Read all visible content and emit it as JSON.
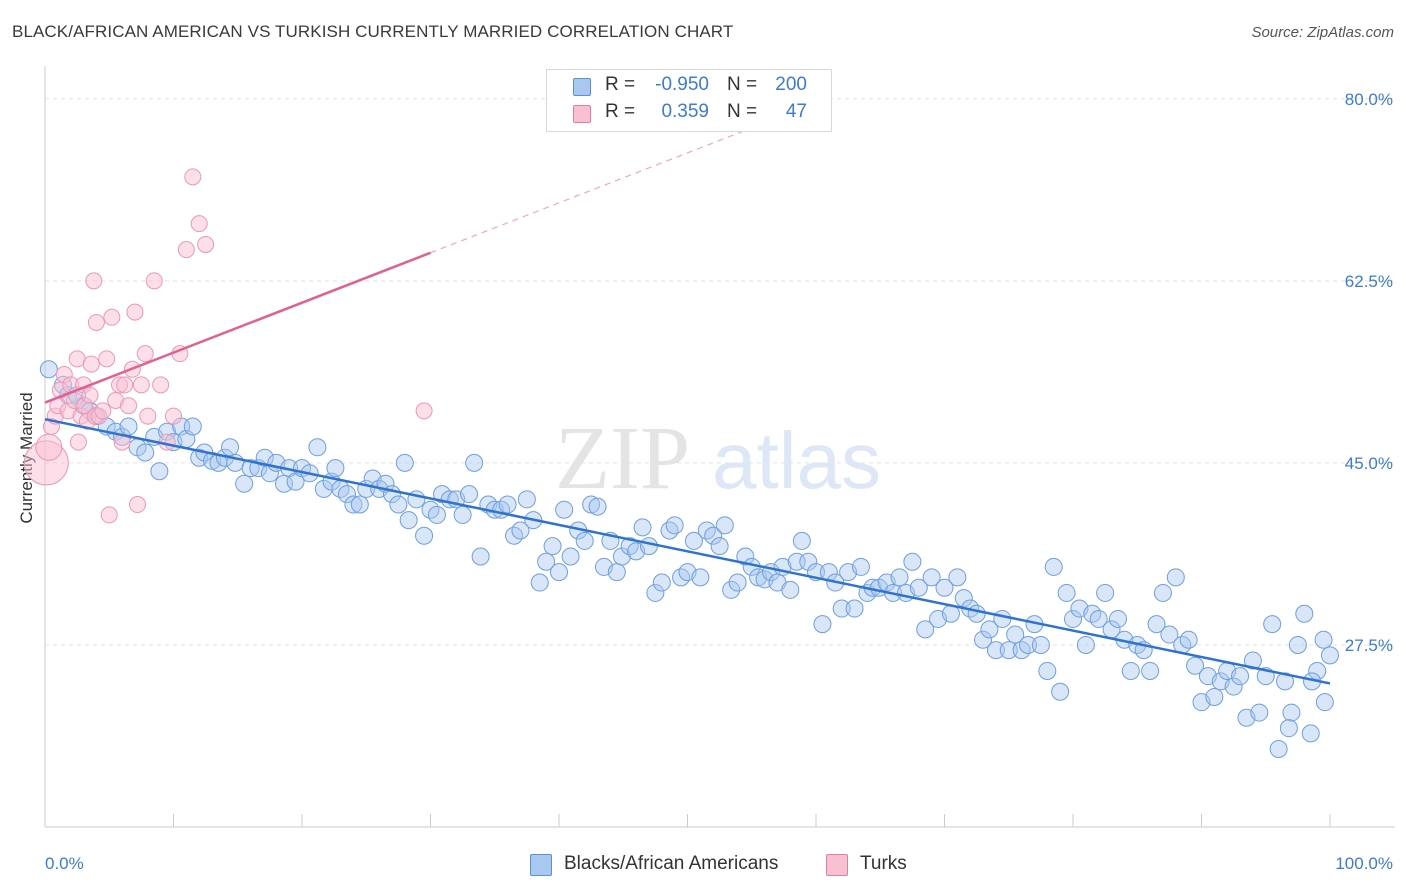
{
  "header": {
    "title": "BLACK/AFRICAN AMERICAN VS TURKISH CURRENTLY MARRIED CORRELATION CHART",
    "source": "Source: ZipAtlas.com"
  },
  "watermark": {
    "part1": "ZIP",
    "part2": "atlas"
  },
  "stats": [
    {
      "r_label": "R =",
      "r_value": "-0.950",
      "n_label": "N =",
      "n_value": "200",
      "color": "#a8c8f0",
      "border": "#5b8fd6"
    },
    {
      "r_label": "R =",
      "r_value": "0.359",
      "n_label": "N =",
      "n_value": "47",
      "color": "#f9c0d2",
      "border": "#e27fa0"
    }
  ],
  "legend": [
    {
      "label": "Blacks/African Americans",
      "color": "#a8c8f0",
      "border": "#5b8fd6"
    },
    {
      "label": "Turks",
      "color": "#f9c0d2",
      "border": "#e27fa0"
    }
  ],
  "chart_data": {
    "type": "scatter",
    "title": "BLACK/AFRICAN AMERICAN VS TURKISH CURRENTLY MARRIED CORRELATION CHART",
    "xlabel": "",
    "ylabel": "Currently Married",
    "xlim": [
      0,
      100
    ],
    "ylim": [
      10,
      82
    ],
    "x_tick_labels": [
      "0.0%",
      "100.0%"
    ],
    "y_ticks": [
      27.5,
      45.0,
      62.5,
      80.0
    ],
    "y_tick_labels": [
      "27.5%",
      "45.0%",
      "62.5%",
      "80.0%"
    ],
    "grid": true,
    "legend_position": "bottom-center",
    "colors": {
      "blue": "#3d7bd0",
      "blue_fill": "#a8c8f0",
      "pink": "#e0608f",
      "pink_fill": "#f9c0d2"
    },
    "series": [
      {
        "name": "Blacks/African Americans",
        "trendline": {
          "x": [
            0,
            100
          ],
          "y": [
            49.2,
            23.8
          ]
        },
        "points": [
          [
            0.3,
            54.0
          ],
          [
            1.4,
            52.5
          ],
          [
            1.8,
            51.5
          ],
          [
            2.5,
            51.5
          ],
          [
            3.0,
            50.5
          ],
          [
            3.5,
            50.0
          ],
          [
            4.0,
            49.5
          ],
          [
            4.8,
            48.5
          ],
          [
            5.5,
            48.0
          ],
          [
            6.0,
            47.5
          ],
          [
            6.5,
            48.5
          ],
          [
            7.2,
            46.5
          ],
          [
            7.8,
            46.0
          ],
          [
            8.5,
            47.5
          ],
          [
            8.9,
            44.2
          ],
          [
            9.5,
            48.0
          ],
          [
            10.0,
            47.0
          ],
          [
            10.6,
            48.5
          ],
          [
            11.0,
            47.3
          ],
          [
            11.5,
            48.5
          ],
          [
            12.0,
            45.5
          ],
          [
            12.4,
            46.0
          ],
          [
            13.0,
            45.2
          ],
          [
            13.5,
            45.0
          ],
          [
            14.0,
            45.5
          ],
          [
            14.4,
            46.5
          ],
          [
            14.8,
            45.0
          ],
          [
            15.5,
            43.0
          ],
          [
            16.0,
            44.5
          ],
          [
            16.6,
            44.5
          ],
          [
            17.1,
            45.5
          ],
          [
            17.5,
            44.0
          ],
          [
            18.0,
            45.0
          ],
          [
            18.6,
            43.0
          ],
          [
            19.0,
            44.5
          ],
          [
            19.5,
            43.2
          ],
          [
            20.0,
            44.5
          ],
          [
            20.6,
            44.0
          ],
          [
            21.2,
            46.5
          ],
          [
            21.7,
            42.5
          ],
          [
            22.3,
            43.2
          ],
          [
            22.6,
            44.5
          ],
          [
            23.0,
            42.5
          ],
          [
            23.5,
            42.0
          ],
          [
            24.0,
            41.0
          ],
          [
            24.5,
            41.0
          ],
          [
            25.0,
            42.5
          ],
          [
            25.5,
            43.5
          ],
          [
            26.0,
            42.5
          ],
          [
            26.5,
            43.0
          ],
          [
            27.0,
            42.0
          ],
          [
            27.5,
            41.0
          ],
          [
            28.0,
            45.0
          ],
          [
            28.3,
            39.5
          ],
          [
            28.9,
            41.5
          ],
          [
            29.5,
            38.0
          ],
          [
            30.0,
            40.5
          ],
          [
            30.5,
            40.0
          ],
          [
            30.9,
            42.0
          ],
          [
            31.5,
            41.5
          ],
          [
            32.0,
            41.5
          ],
          [
            32.5,
            40.0
          ],
          [
            33.0,
            42.0
          ],
          [
            33.4,
            45.0
          ],
          [
            33.9,
            36.0
          ],
          [
            34.5,
            41.0
          ],
          [
            35.0,
            40.5
          ],
          [
            35.5,
            40.5
          ],
          [
            36.0,
            41.0
          ],
          [
            36.5,
            38.0
          ],
          [
            37.0,
            38.5
          ],
          [
            37.5,
            41.5
          ],
          [
            38.0,
            39.5
          ],
          [
            38.5,
            33.5
          ],
          [
            39.0,
            35.5
          ],
          [
            39.5,
            37.0
          ],
          [
            40.0,
            34.5
          ],
          [
            40.4,
            40.5
          ],
          [
            40.9,
            36.0
          ],
          [
            41.5,
            38.5
          ],
          [
            42.0,
            37.5
          ],
          [
            42.5,
            41.0
          ],
          [
            43.0,
            40.8
          ],
          [
            43.5,
            35.0
          ],
          [
            44.0,
            37.5
          ],
          [
            44.5,
            34.5
          ],
          [
            44.9,
            36.0
          ],
          [
            45.5,
            37.0
          ],
          [
            46.0,
            36.5
          ],
          [
            46.5,
            38.8
          ],
          [
            47.0,
            37.0
          ],
          [
            47.5,
            32.5
          ],
          [
            48.0,
            33.5
          ],
          [
            48.6,
            38.5
          ],
          [
            49.0,
            39.0
          ],
          [
            49.5,
            34.0
          ],
          [
            50.0,
            34.5
          ],
          [
            50.5,
            37.5
          ],
          [
            51.0,
            34.0
          ],
          [
            51.5,
            38.5
          ],
          [
            52.0,
            38.0
          ],
          [
            52.5,
            37.0
          ],
          [
            52.9,
            39.0
          ],
          [
            53.4,
            32.8
          ],
          [
            53.9,
            33.5
          ],
          [
            54.5,
            36.0
          ],
          [
            55.0,
            35.0
          ],
          [
            55.5,
            34.0
          ],
          [
            56.0,
            33.8
          ],
          [
            56.5,
            34.5
          ],
          [
            57.0,
            33.5
          ],
          [
            57.4,
            35.0
          ],
          [
            58.0,
            32.8
          ],
          [
            58.5,
            35.5
          ],
          [
            58.9,
            37.5
          ],
          [
            59.4,
            35.5
          ],
          [
            60.0,
            34.5
          ],
          [
            60.5,
            29.5
          ],
          [
            61.0,
            34.5
          ],
          [
            61.5,
            33.5
          ],
          [
            62.0,
            31.0
          ],
          [
            62.5,
            34.5
          ],
          [
            63.0,
            31.0
          ],
          [
            63.5,
            35.0
          ],
          [
            64.0,
            32.5
          ],
          [
            64.4,
            33.0
          ],
          [
            64.9,
            33.0
          ],
          [
            65.5,
            33.5
          ],
          [
            66.0,
            32.5
          ],
          [
            66.5,
            34.0
          ],
          [
            67.0,
            32.5
          ],
          [
            67.5,
            35.5
          ],
          [
            68.0,
            33.0
          ],
          [
            68.5,
            29.0
          ],
          [
            69.0,
            34.0
          ],
          [
            69.5,
            30.0
          ],
          [
            70.0,
            33.0
          ],
          [
            70.5,
            30.5
          ],
          [
            71.0,
            34.0
          ],
          [
            71.5,
            32.0
          ],
          [
            72.0,
            31.0
          ],
          [
            72.5,
            30.5
          ],
          [
            73.0,
            28.0
          ],
          [
            73.5,
            29.0
          ],
          [
            74.0,
            27.0
          ],
          [
            74.5,
            30.0
          ],
          [
            75.0,
            27.0
          ],
          [
            75.5,
            28.5
          ],
          [
            76.0,
            27.0
          ],
          [
            76.5,
            27.5
          ],
          [
            77.0,
            29.5
          ],
          [
            77.5,
            27.5
          ],
          [
            78.0,
            25.0
          ],
          [
            78.5,
            35.0
          ],
          [
            79.0,
            23.0
          ],
          [
            79.5,
            32.5
          ],
          [
            80.0,
            30.0
          ],
          [
            80.5,
            31.0
          ],
          [
            81.0,
            27.5
          ],
          [
            81.5,
            30.5
          ],
          [
            82.0,
            30.0
          ],
          [
            82.5,
            32.5
          ],
          [
            83.0,
            29.0
          ],
          [
            83.5,
            30.0
          ],
          [
            84.0,
            28.0
          ],
          [
            84.5,
            25.0
          ],
          [
            85.0,
            27.5
          ],
          [
            85.5,
            27.0
          ],
          [
            86.0,
            25.0
          ],
          [
            86.5,
            29.5
          ],
          [
            87.0,
            32.5
          ],
          [
            87.5,
            28.5
          ],
          [
            88.0,
            34.0
          ],
          [
            88.5,
            27.5
          ],
          [
            89.0,
            28.0
          ],
          [
            89.5,
            25.5
          ],
          [
            90.0,
            22.0
          ],
          [
            90.5,
            24.5
          ],
          [
            91.0,
            22.5
          ],
          [
            91.5,
            24.0
          ],
          [
            92.0,
            25.0
          ],
          [
            92.5,
            23.5
          ],
          [
            93.0,
            24.5
          ],
          [
            93.5,
            20.5
          ],
          [
            94.0,
            26.0
          ],
          [
            94.5,
            21.0
          ],
          [
            95.0,
            24.5
          ],
          [
            95.5,
            29.5
          ],
          [
            96.0,
            17.5
          ],
          [
            96.5,
            24.0
          ],
          [
            97.0,
            21.0
          ],
          [
            97.5,
            27.5
          ],
          [
            98.0,
            30.5
          ],
          [
            98.5,
            19.0
          ],
          [
            99.0,
            25.0
          ],
          [
            99.5,
            28.0
          ],
          [
            100.0,
            26.5
          ],
          [
            96.8,
            19.5
          ],
          [
            98.6,
            24.0
          ],
          [
            99.6,
            22.0
          ]
        ]
      },
      {
        "name": "Turks",
        "trendline": {
          "x": [
            0,
            30
          ],
          "y": [
            50.8,
            65.2
          ]
        },
        "trendline_extension": {
          "x": [
            30,
            55
          ],
          "y": [
            65.2,
            77.2
          ]
        },
        "points": [
          [
            0.1,
            45.0
          ],
          [
            0.3,
            46.5
          ],
          [
            0.5,
            48.5
          ],
          [
            0.8,
            49.5
          ],
          [
            1.0,
            50.5
          ],
          [
            1.2,
            52.0
          ],
          [
            1.5,
            53.5
          ],
          [
            1.8,
            50.0
          ],
          [
            2.0,
            52.5
          ],
          [
            2.3,
            51.0
          ],
          [
            2.5,
            55.0
          ],
          [
            2.6,
            47.0
          ],
          [
            2.8,
            49.5
          ],
          [
            3.0,
            52.5
          ],
          [
            3.1,
            50.5
          ],
          [
            3.3,
            49.0
          ],
          [
            3.5,
            51.5
          ],
          [
            3.6,
            54.5
          ],
          [
            3.8,
            62.5
          ],
          [
            3.9,
            49.5
          ],
          [
            4.0,
            58.5
          ],
          [
            4.2,
            49.5
          ],
          [
            4.5,
            50.0
          ],
          [
            4.8,
            55.0
          ],
          [
            5.0,
            40.0
          ],
          [
            5.2,
            59.0
          ],
          [
            5.5,
            51.0
          ],
          [
            5.8,
            52.5
          ],
          [
            6.0,
            47.0
          ],
          [
            6.2,
            52.5
          ],
          [
            6.5,
            50.5
          ],
          [
            6.8,
            54.0
          ],
          [
            7.0,
            59.5
          ],
          [
            7.2,
            41.0
          ],
          [
            7.5,
            52.5
          ],
          [
            7.8,
            55.5
          ],
          [
            8.0,
            49.5
          ],
          [
            8.5,
            62.5
          ],
          [
            9.0,
            52.5
          ],
          [
            9.5,
            47.0
          ],
          [
            10.0,
            49.5
          ],
          [
            10.5,
            55.5
          ],
          [
            11.0,
            65.5
          ],
          [
            11.5,
            72.5
          ],
          [
            12.0,
            68.0
          ],
          [
            12.5,
            66.0
          ],
          [
            29.5,
            50.0
          ]
        ]
      }
    ]
  }
}
